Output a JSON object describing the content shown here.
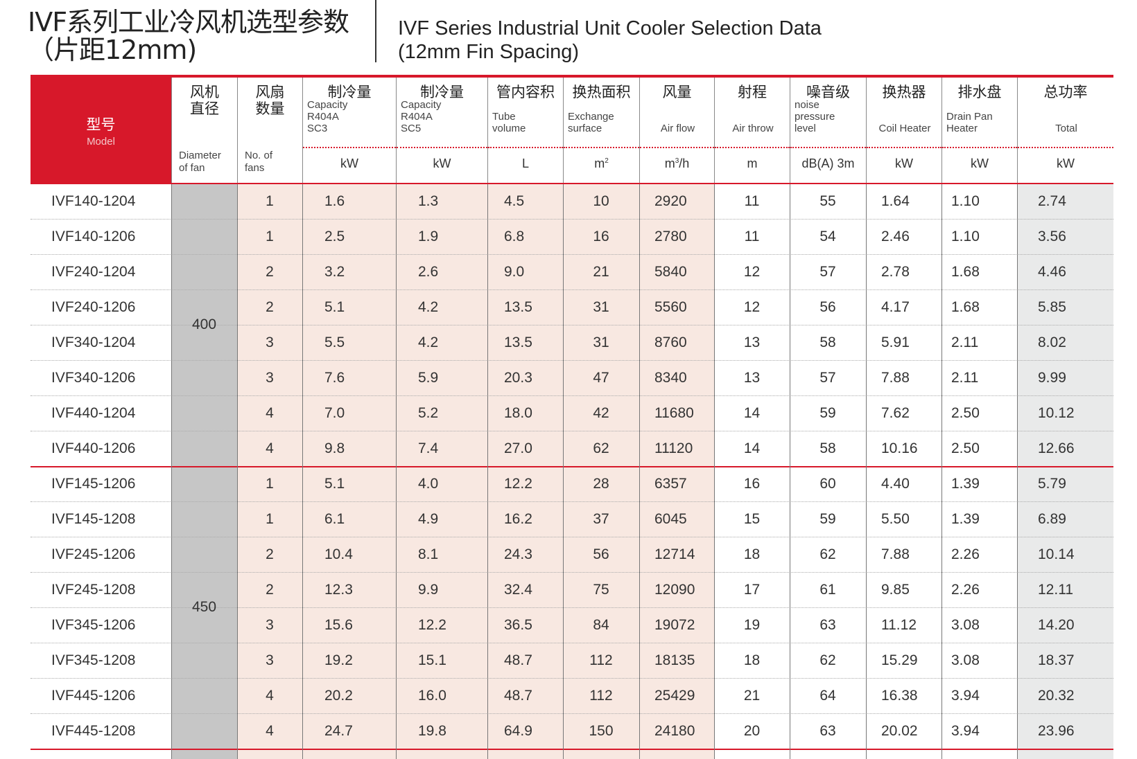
{
  "title": {
    "cn_line1": "IVF系列工业冷风机选型参数",
    "cn_line2": "（片距12mm)",
    "en_line1": "IVF Series Industrial Unit Cooler Selection Data",
    "en_line2": "(12mm Fin Spacing)"
  },
  "colors": {
    "accent": "#d7182a",
    "shaded": "#f8e8e1",
    "diameter": "#c6c6c6",
    "total": "#e9eaea"
  },
  "header": {
    "model": {
      "cn": "型号",
      "en": "Model"
    },
    "columns": [
      {
        "cn": "风机\n直径",
        "en": "Diameter\nof fan",
        "unit": ""
      },
      {
        "cn": "风扇\n数量",
        "en": "No. of\nfans",
        "unit": ""
      },
      {
        "cn": "制冷量",
        "en": "Capacity\nR404A\nSC3",
        "unit": "kW"
      },
      {
        "cn": "制冷量",
        "en": "Capacity\nR404A\nSC5",
        "unit": "kW"
      },
      {
        "cn": "管内容积",
        "en": "Tube\nvolume",
        "unit": "L"
      },
      {
        "cn": "换热面积",
        "en": "Exchange\nsurface",
        "unit": "m²"
      },
      {
        "cn": "风量",
        "en": "Air flow",
        "unit": "m³/h"
      },
      {
        "cn": "射程",
        "en": "Air throw",
        "unit": "m"
      },
      {
        "cn": "噪音级",
        "en": "noise\npressure\nlevel",
        "unit": "dB(A)  3m"
      },
      {
        "cn": "换热器",
        "en": "Coil Heater",
        "unit": "kW"
      },
      {
        "cn": "排水盘",
        "en": "Drain Pan\nHeater",
        "unit": "kW"
      },
      {
        "cn": "总功率",
        "en": "Total",
        "unit": "kW"
      }
    ]
  },
  "groups": [
    {
      "diameter": "400",
      "rows": [
        [
          "IVF140-1204",
          "1",
          "1.6",
          "1.3",
          "4.5",
          "10",
          "2920",
          "11",
          "55",
          "1.64",
          "1.10",
          "2.74"
        ],
        [
          "IVF140-1206",
          "1",
          "2.5",
          "1.9",
          "6.8",
          "16",
          "2780",
          "11",
          "54",
          "2.46",
          "1.10",
          "3.56"
        ],
        [
          "IVF240-1204",
          "2",
          "3.2",
          "2.6",
          "9.0",
          "21",
          "5840",
          "12",
          "57",
          "2.78",
          "1.68",
          "4.46"
        ],
        [
          "IVF240-1206",
          "2",
          "5.1",
          "4.2",
          "13.5",
          "31",
          "5560",
          "12",
          "56",
          "4.17",
          "1.68",
          "5.85"
        ],
        [
          "IVF340-1204",
          "3",
          "5.5",
          "4.2",
          "13.5",
          "31",
          "8760",
          "13",
          "58",
          "5.91",
          "2.11",
          "8.02"
        ],
        [
          "IVF340-1206",
          "3",
          "7.6",
          "5.9",
          "20.3",
          "47",
          "8340",
          "13",
          "57",
          "7.88",
          "2.11",
          "9.99"
        ],
        [
          "IVF440-1204",
          "4",
          "7.0",
          "5.2",
          "18.0",
          "42",
          "11680",
          "14",
          "59",
          "7.62",
          "2.50",
          "10.12"
        ],
        [
          "IVF440-1206",
          "4",
          "9.8",
          "7.4",
          "27.0",
          "62",
          "11120",
          "14",
          "58",
          "10.16",
          "2.50",
          "12.66"
        ]
      ]
    },
    {
      "diameter": "450",
      "rows": [
        [
          "IVF145-1206",
          "1",
          "5.1",
          "4.0",
          "12.2",
          "28",
          "6357",
          "16",
          "60",
          "4.40",
          "1.39",
          "5.79"
        ],
        [
          "IVF145-1208",
          "1",
          "6.1",
          "4.9",
          "16.2",
          "37",
          "6045",
          "15",
          "59",
          "5.50",
          "1.39",
          "6.89"
        ],
        [
          "IVF245-1206",
          "2",
          "10.4",
          "8.1",
          "24.3",
          "56",
          "12714",
          "18",
          "62",
          "7.88",
          "2.26",
          "10.14"
        ],
        [
          "IVF245-1208",
          "2",
          "12.3",
          "9.9",
          "32.4",
          "75",
          "12090",
          "17",
          "61",
          "9.85",
          "2.26",
          "12.11"
        ],
        [
          "IVF345-1206",
          "3",
          "15.6",
          "12.2",
          "36.5",
          "84",
          "19072",
          "19",
          "63",
          "11.12",
          "3.08",
          "14.20"
        ],
        [
          "IVF345-1208",
          "3",
          "19.2",
          "15.1",
          "48.7",
          "112",
          "18135",
          "18",
          "62",
          "15.29",
          "3.08",
          "18.37"
        ],
        [
          "IVF445-1206",
          "4",
          "20.2",
          "16.0",
          "48.7",
          "112",
          "25429",
          "21",
          "64",
          "16.38",
          "3.94",
          "20.32"
        ],
        [
          "IVF445-1208",
          "4",
          "24.7",
          "19.8",
          "64.9",
          "150",
          "24180",
          "20",
          "63",
          "20.02",
          "3.94",
          "23.96"
        ]
      ]
    }
  ]
}
